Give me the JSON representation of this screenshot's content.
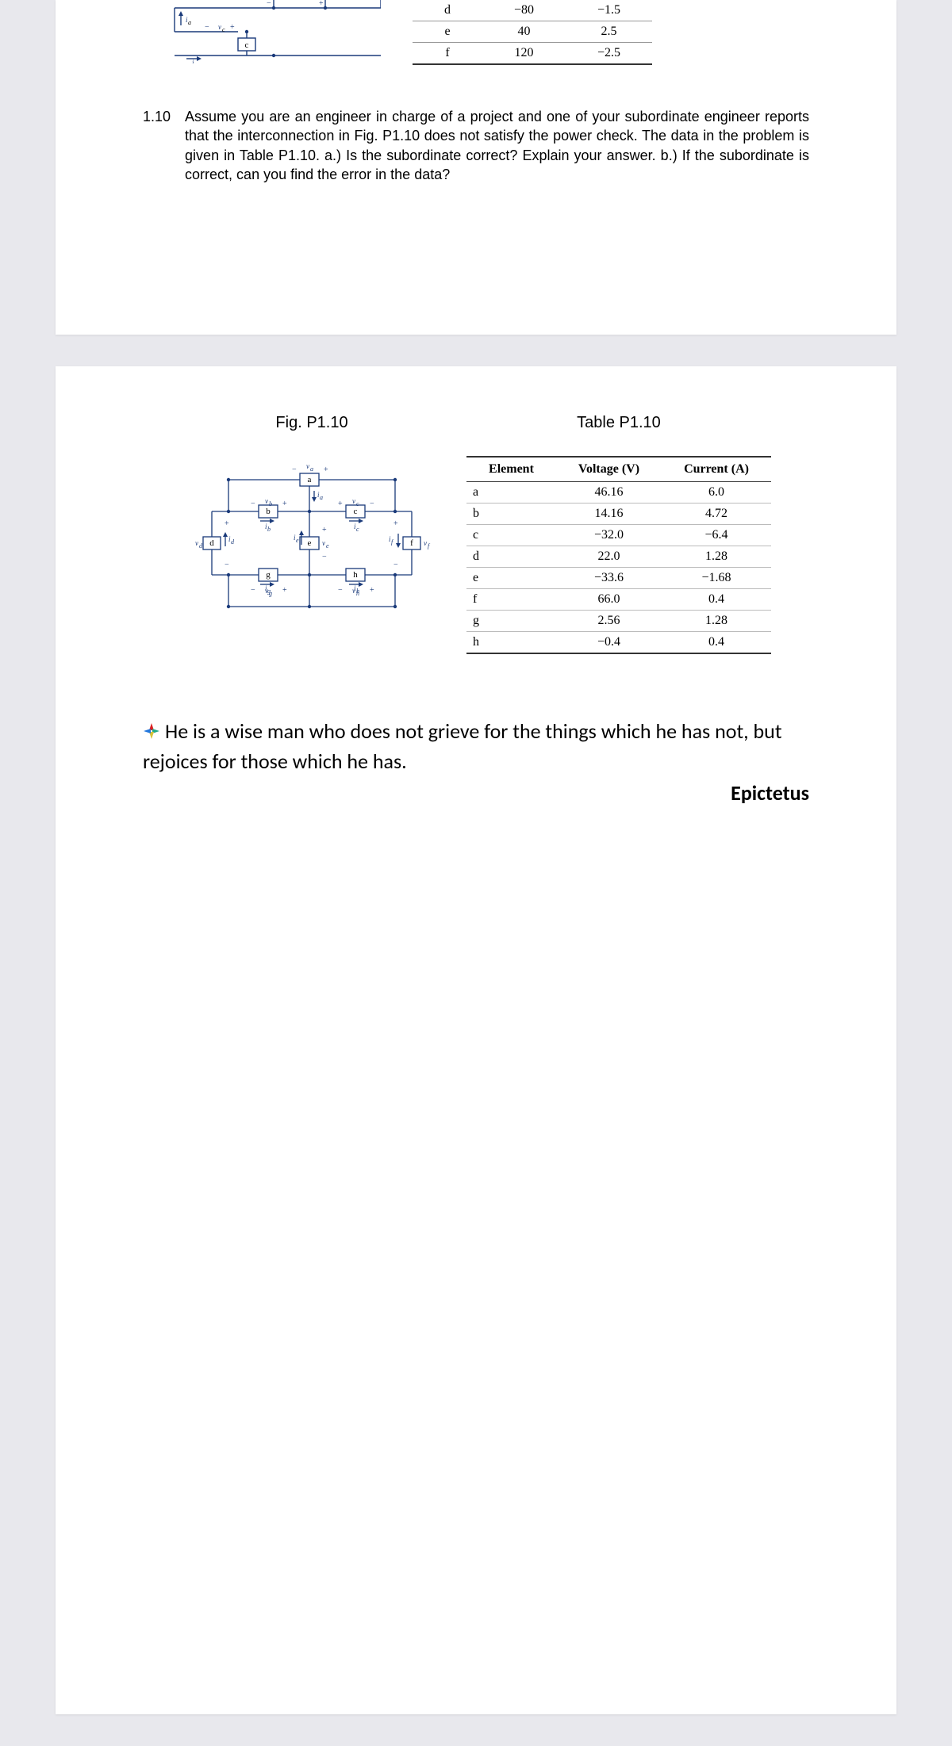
{
  "top_fragment": {
    "rows": [
      {
        "el": "d",
        "v": "−80",
        "i": "−1.5"
      },
      {
        "el": "e",
        "v": "40",
        "i": "2.5"
      },
      {
        "el": "f",
        "v": "120",
        "i": "−2.5"
      }
    ]
  },
  "problem": {
    "number": "1.10",
    "text": "Assume you are an engineer in charge of a project and one of your subordinate engineer reports that the interconnection in Fig. P1.10 does not satisfy the power check. The data in the problem is given in Table P1.10. a.) Is the subordinate correct? Explain your answer. b.) If the subordinate is correct, can you find the error in the data?"
  },
  "figure": {
    "caption": "Fig. P1.10",
    "nodes": [
      "a",
      "b",
      "c",
      "d",
      "e",
      "f",
      "g",
      "h"
    ],
    "stroke": "#1a3a7a"
  },
  "table": {
    "caption": "Table P1.10",
    "columns": [
      "Element",
      "Voltage (V)",
      "Current (A)"
    ],
    "rows": [
      {
        "el": "a",
        "v": "46.16",
        "i": "6.0"
      },
      {
        "el": "b",
        "v": "14.16",
        "i": "4.72"
      },
      {
        "el": "c",
        "v": "−32.0",
        "i": "−6.4"
      },
      {
        "el": "d",
        "v": "22.0",
        "i": "1.28"
      },
      {
        "el": "e",
        "v": "−33.6",
        "i": "−1.68"
      },
      {
        "el": "f",
        "v": "66.0",
        "i": "0.4"
      },
      {
        "el": "g",
        "v": "2.56",
        "i": "1.28"
      },
      {
        "el": "h",
        "v": "−0.4",
        "i": "0.4"
      }
    ]
  },
  "quote": {
    "text": "He is a wise man who does not grieve for the things which he has not, but rejoices for those which he has.",
    "author": "Epictetus",
    "icon_colors": {
      "n": "#d22",
      "e": "#2a8",
      "s": "#d6c23a",
      "w": "#27d"
    }
  }
}
